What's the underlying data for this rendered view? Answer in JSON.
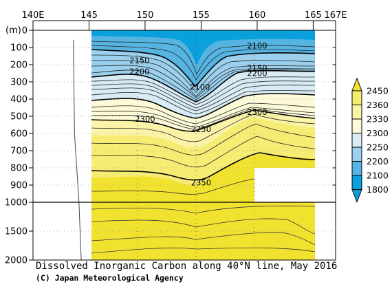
{
  "chart_data": {
    "type": "heatmap",
    "title": "Dissolved Inorganic Carbon along 40°N line, May 2016",
    "credit": "(C) Japan Meteorological Agency",
    "x_ticks": [
      "140E",
      "145",
      "150",
      "155",
      "160",
      "165",
      "167E"
    ],
    "x_tick_values": [
      140,
      145,
      150,
      155,
      160,
      165,
      167
    ],
    "xlim": [
      140,
      167
    ],
    "y_unit_label": "(m)",
    "y_ticks_upper": [
      0,
      100,
      200,
      300,
      400,
      500,
      600,
      700,
      800,
      900,
      1000
    ],
    "y_ticks_lower": [
      1500,
      2000
    ],
    "ylim": [
      0,
      2000
    ],
    "y_scale_break": 1000,
    "data_extent": {
      "x": [
        145,
        165
      ],
      "max_depth": 2000,
      "missing_region": {
        "x": [
          160,
          165
        ],
        "depth": [
          800,
          1000
        ]
      }
    },
    "contour_labels": [
      {
        "text": "2100",
        "x": 160,
        "depth": 90
      },
      {
        "text": "2150",
        "x": 149.5,
        "depth": 175
      },
      {
        "text": "2200",
        "x": 149.5,
        "depth": 240
      },
      {
        "text": "2100",
        "x": 154.9,
        "depth": 330
      },
      {
        "text": "2150",
        "x": 160,
        "depth": 220
      },
      {
        "text": "2200",
        "x": 160,
        "depth": 250
      },
      {
        "text": "2300",
        "x": 150,
        "depth": 515
      },
      {
        "text": "2250",
        "x": 155,
        "depth": 575
      },
      {
        "text": "2300",
        "x": 160,
        "depth": 475
      },
      {
        "text": "2350",
        "x": 155,
        "depth": 885
      }
    ],
    "profile": [
      {
        "depth": 55,
        "x": 143.6
      },
      {
        "depth": 600,
        "x": 143.7
      },
      {
        "depth": 1000,
        "x": 144.1
      },
      {
        "depth": 2000,
        "x": 144.3
      }
    ],
    "colorbar": {
      "levels": [
        "2450",
        "2360",
        "2330",
        "2300",
        "2250",
        "2200",
        "2100",
        "1800"
      ],
      "colors": [
        "#f2e230",
        "#f6ec74",
        "#faf3a8",
        "#fdfad8",
        "#d9ecf6",
        "#9bd0ee",
        "#55b4e2",
        "#0aa0db"
      ]
    }
  }
}
